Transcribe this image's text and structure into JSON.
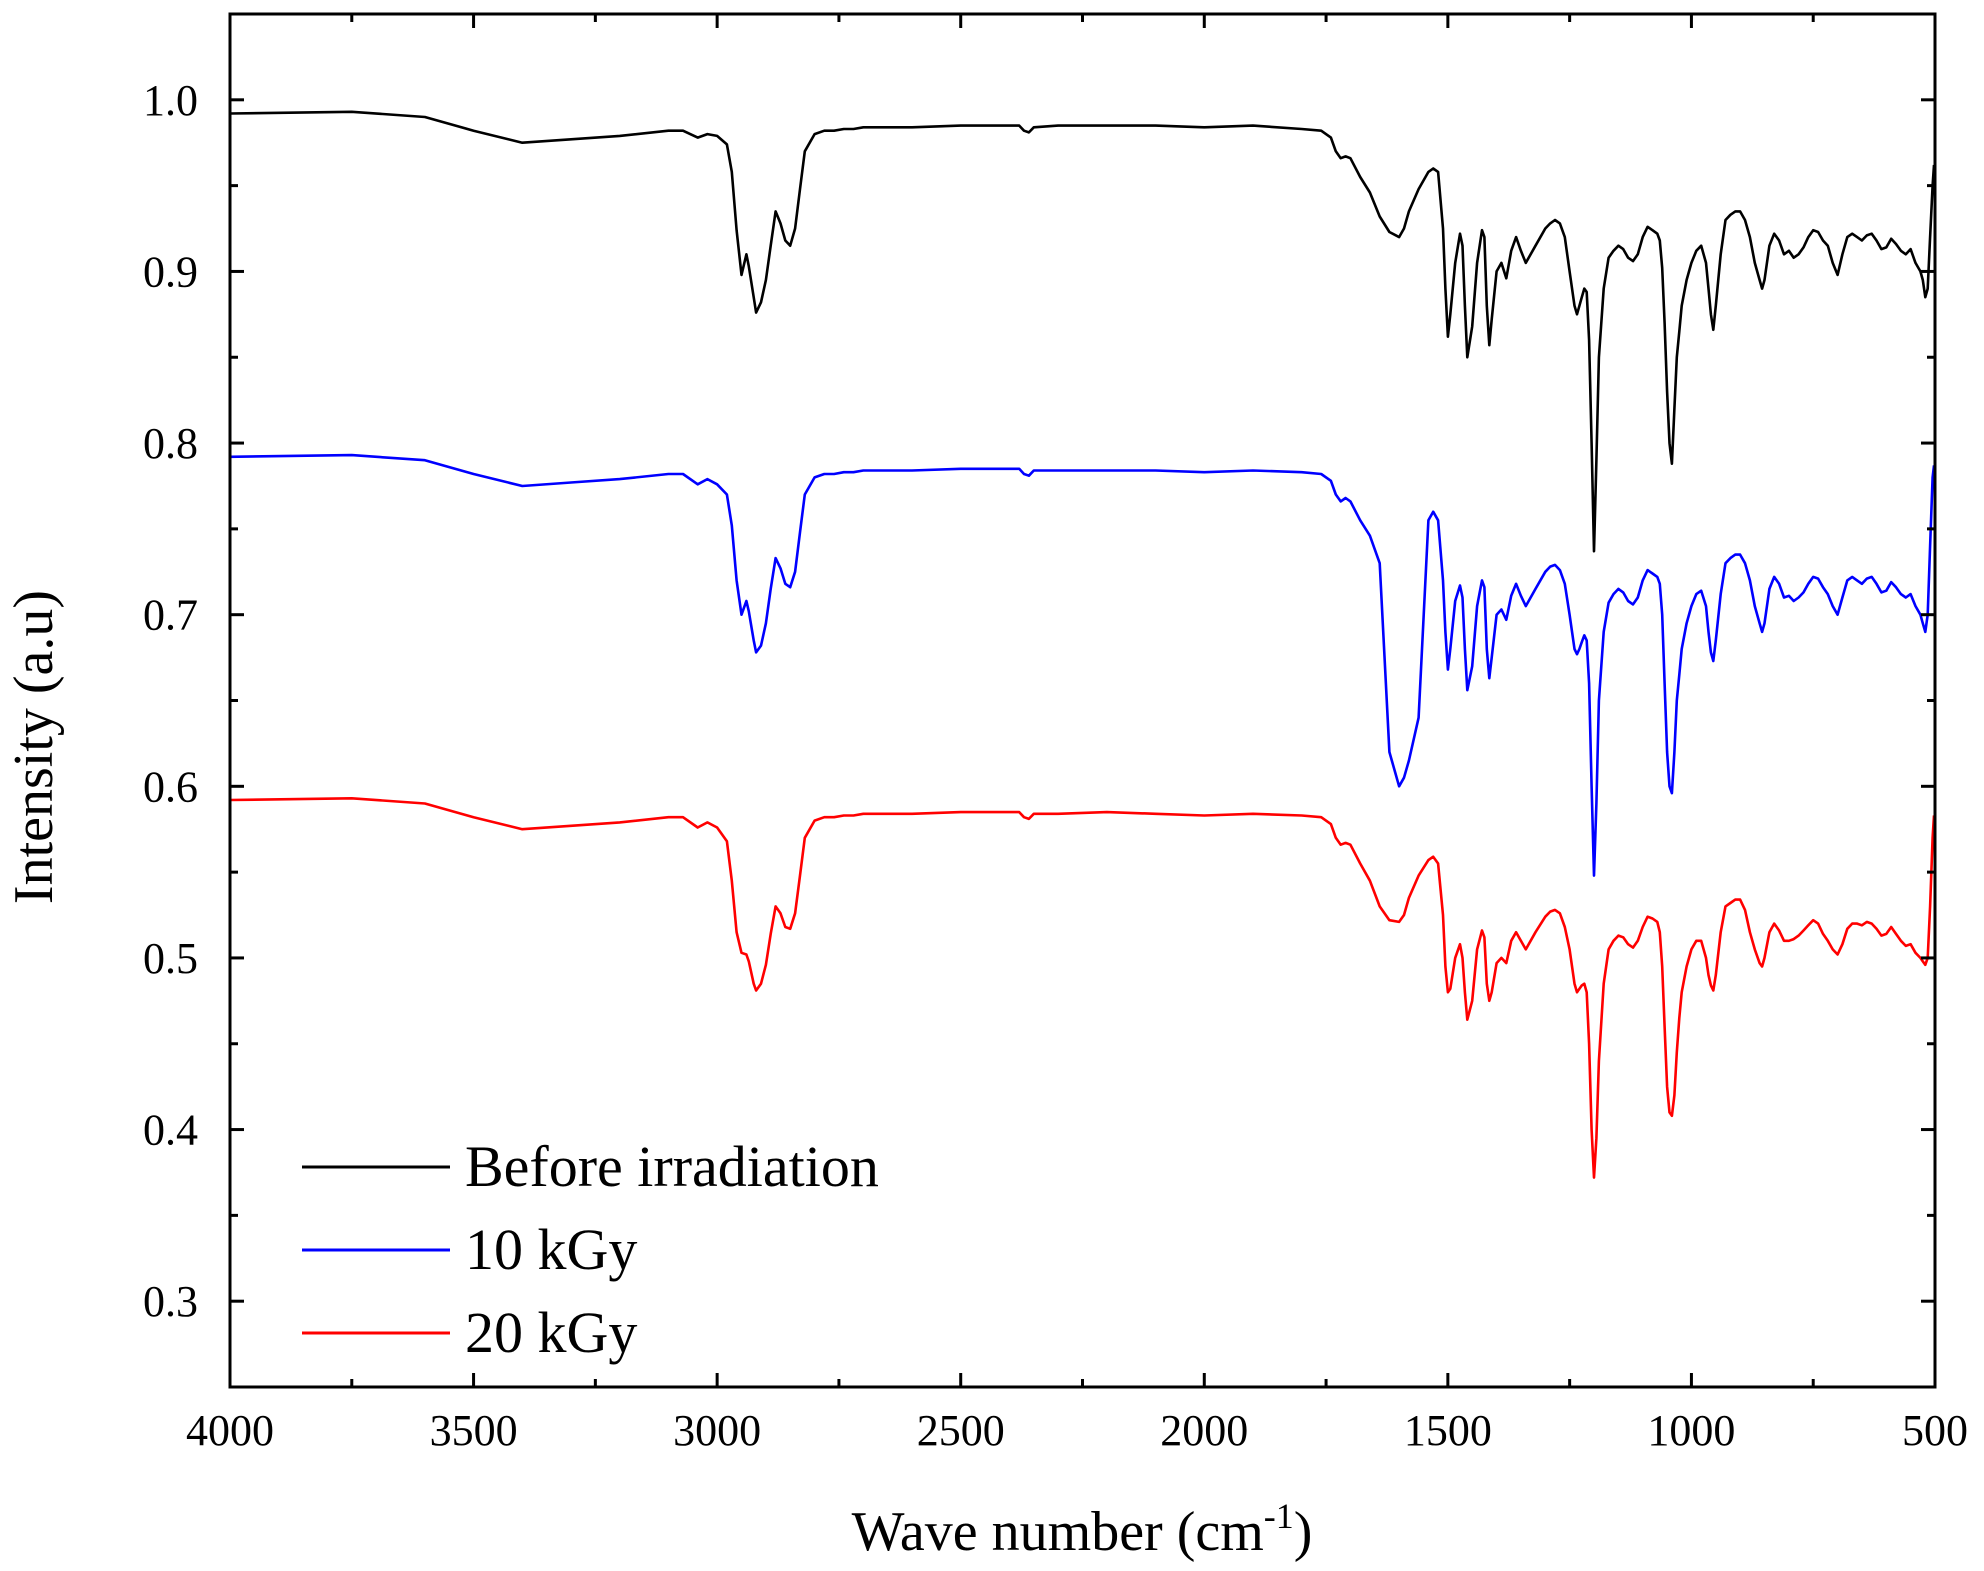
{
  "chart_data": {
    "type": "line",
    "title": "",
    "xlabel": "Wave number (cm",
    "xlabel_sup": "-1",
    "xlabel_close": ")",
    "ylabel": "Intensity (a.u)",
    "xlim": [
      4000,
      500
    ],
    "ylim": [
      0.25,
      1.05
    ],
    "x_ticks": [
      4000,
      3500,
      3000,
      2500,
      2000,
      1500,
      1000,
      500
    ],
    "x_tick_labels": [
      "4000",
      "3500",
      "3000",
      "2500",
      "2000",
      "1500",
      "1000",
      "500"
    ],
    "y_ticks": [
      0.3,
      0.4,
      0.5,
      0.6,
      0.7,
      0.8,
      0.9,
      1.0
    ],
    "y_tick_labels": [
      "0.3",
      "0.4",
      "0.5",
      "0.6",
      "0.7",
      "0.8",
      "0.9",
      "1.0"
    ],
    "grid": false,
    "legend_position": "bottom-left",
    "series": [
      {
        "name": "Before irradiation",
        "color": "#000000",
        "x": [
          4000,
          3750,
          3600,
          3500,
          3400,
          3300,
          3200,
          3100,
          3070,
          3040,
          3020,
          3000,
          2980,
          2970,
          2960,
          2950,
          2940,
          2935,
          2925,
          2920,
          2910,
          2900,
          2890,
          2880,
          2870,
          2860,
          2850,
          2840,
          2830,
          2820,
          2800,
          2780,
          2760,
          2740,
          2720,
          2700,
          2600,
          2500,
          2380,
          2370,
          2360,
          2350,
          2300,
          2200,
          2100,
          2000,
          1900,
          1800,
          1760,
          1740,
          1730,
          1720,
          1710,
          1700,
          1680,
          1660,
          1640,
          1620,
          1600,
          1590,
          1580,
          1560,
          1540,
          1530,
          1520,
          1510,
          1505,
          1500,
          1495,
          1485,
          1475,
          1470,
          1465,
          1460,
          1450,
          1440,
          1430,
          1425,
          1420,
          1415,
          1410,
          1400,
          1390,
          1380,
          1370,
          1360,
          1350,
          1340,
          1320,
          1300,
          1290,
          1280,
          1270,
          1260,
          1250,
          1240,
          1235,
          1230,
          1225,
          1220,
          1215,
          1210,
          1205,
          1200,
          1195,
          1190,
          1180,
          1170,
          1160,
          1150,
          1140,
          1130,
          1120,
          1110,
          1100,
          1090,
          1080,
          1070,
          1065,
          1060,
          1055,
          1050,
          1045,
          1040,
          1035,
          1030,
          1025,
          1020,
          1010,
          1000,
          990,
          980,
          970,
          965,
          960,
          955,
          950,
          940,
          930,
          920,
          910,
          900,
          890,
          880,
          870,
          860,
          855,
          850,
          840,
          830,
          820,
          810,
          800,
          790,
          780,
          770,
          760,
          750,
          740,
          730,
          720,
          710,
          700,
          690,
          680,
          670,
          660,
          650,
          640,
          630,
          620,
          610,
          600,
          590,
          580,
          570,
          560,
          550,
          540,
          530,
          525,
          520,
          515,
          510,
          505,
          502
        ],
        "values": [
          0.992,
          0.993,
          0.99,
          0.982,
          0.975,
          0.977,
          0.979,
          0.982,
          0.982,
          0.978,
          0.98,
          0.979,
          0.974,
          0.958,
          0.924,
          0.898,
          0.91,
          0.903,
          0.885,
          0.876,
          0.882,
          0.895,
          0.915,
          0.935,
          0.928,
          0.918,
          0.915,
          0.925,
          0.948,
          0.97,
          0.98,
          0.982,
          0.982,
          0.983,
          0.983,
          0.984,
          0.984,
          0.985,
          0.985,
          0.982,
          0.981,
          0.984,
          0.985,
          0.985,
          0.985,
          0.984,
          0.985,
          0.983,
          0.982,
          0.978,
          0.97,
          0.966,
          0.967,
          0.966,
          0.955,
          0.946,
          0.932,
          0.923,
          0.92,
          0.925,
          0.935,
          0.948,
          0.958,
          0.96,
          0.958,
          0.925,
          0.89,
          0.862,
          0.875,
          0.905,
          0.922,
          0.915,
          0.88,
          0.85,
          0.868,
          0.905,
          0.924,
          0.92,
          0.88,
          0.857,
          0.872,
          0.9,
          0.905,
          0.896,
          0.912,
          0.92,
          0.912,
          0.905,
          0.915,
          0.925,
          0.928,
          0.93,
          0.928,
          0.92,
          0.9,
          0.88,
          0.875,
          0.88,
          0.885,
          0.89,
          0.888,
          0.86,
          0.8,
          0.737,
          0.79,
          0.85,
          0.89,
          0.908,
          0.912,
          0.915,
          0.913,
          0.908,
          0.906,
          0.91,
          0.92,
          0.926,
          0.924,
          0.922,
          0.918,
          0.902,
          0.87,
          0.83,
          0.8,
          0.788,
          0.82,
          0.85,
          0.865,
          0.88,
          0.895,
          0.905,
          0.912,
          0.915,
          0.905,
          0.89,
          0.875,
          0.866,
          0.88,
          0.91,
          0.93,
          0.933,
          0.935,
          0.935,
          0.93,
          0.92,
          0.905,
          0.895,
          0.89,
          0.895,
          0.915,
          0.922,
          0.918,
          0.91,
          0.912,
          0.908,
          0.91,
          0.914,
          0.92,
          0.924,
          0.923,
          0.918,
          0.915,
          0.905,
          0.898,
          0.91,
          0.92,
          0.922,
          0.92,
          0.918,
          0.921,
          0.922,
          0.918,
          0.913,
          0.914,
          0.919,
          0.916,
          0.912,
          0.91,
          0.913,
          0.905,
          0.9,
          0.895,
          0.885,
          0.89,
          0.92,
          0.95,
          0.962
        ]
      },
      {
        "name": "10 kGy",
        "color": "#0000ff",
        "x": [
          4000,
          3750,
          3600,
          3500,
          3400,
          3300,
          3200,
          3100,
          3070,
          3040,
          3020,
          3000,
          2980,
          2970,
          2960,
          2950,
          2940,
          2935,
          2925,
          2920,
          2910,
          2900,
          2890,
          2880,
          2870,
          2860,
          2850,
          2840,
          2830,
          2820,
          2800,
          2780,
          2760,
          2740,
          2720,
          2700,
          2600,
          2500,
          2380,
          2370,
          2360,
          2350,
          2300,
          2200,
          2100,
          2000,
          1900,
          1800,
          1760,
          1740,
          1730,
          1720,
          1710,
          1700,
          1680,
          1660,
          1640,
          1620,
          1600,
          1590,
          1580,
          1560,
          1540,
          1530,
          1520,
          1510,
          1505,
          1500,
          1495,
          1485,
          1475,
          1470,
          1465,
          1460,
          1450,
          1440,
          1430,
          1425,
          1420,
          1415,
          1410,
          1400,
          1390,
          1380,
          1370,
          1360,
          1350,
          1340,
          1320,
          1300,
          1290,
          1280,
          1270,
          1260,
          1250,
          1240,
          1235,
          1230,
          1225,
          1220,
          1215,
          1210,
          1205,
          1200,
          1195,
          1190,
          1180,
          1170,
          1160,
          1150,
          1140,
          1130,
          1120,
          1110,
          1100,
          1090,
          1080,
          1070,
          1065,
          1060,
          1055,
          1050,
          1045,
          1040,
          1035,
          1030,
          1025,
          1020,
          1010,
          1000,
          990,
          980,
          970,
          965,
          960,
          955,
          950,
          940,
          930,
          920,
          910,
          900,
          890,
          880,
          870,
          860,
          855,
          850,
          840,
          830,
          820,
          810,
          800,
          790,
          780,
          770,
          760,
          750,
          740,
          730,
          720,
          710,
          700,
          690,
          680,
          670,
          660,
          650,
          640,
          630,
          620,
          610,
          600,
          590,
          580,
          570,
          560,
          550,
          540,
          530,
          525,
          520,
          515,
          510,
          505,
          502
        ],
        "values": [
          0.792,
          0.793,
          0.79,
          0.782,
          0.775,
          0.777,
          0.779,
          0.782,
          0.782,
          0.776,
          0.779,
          0.776,
          0.77,
          0.752,
          0.72,
          0.7,
          0.708,
          0.702,
          0.685,
          0.678,
          0.682,
          0.695,
          0.715,
          0.733,
          0.727,
          0.718,
          0.716,
          0.725,
          0.748,
          0.77,
          0.78,
          0.782,
          0.782,
          0.783,
          0.783,
          0.784,
          0.784,
          0.785,
          0.785,
          0.782,
          0.781,
          0.784,
          0.784,
          0.784,
          0.784,
          0.783,
          0.784,
          0.783,
          0.782,
          0.778,
          0.77,
          0.766,
          0.768,
          0.766,
          0.755,
          0.746,
          0.73,
          0.62,
          0.6,
          0.605,
          0.615,
          0.64,
          0.755,
          0.76,
          0.755,
          0.72,
          0.69,
          0.668,
          0.68,
          0.708,
          0.717,
          0.71,
          0.68,
          0.656,
          0.67,
          0.705,
          0.72,
          0.716,
          0.68,
          0.663,
          0.675,
          0.7,
          0.703,
          0.697,
          0.711,
          0.718,
          0.711,
          0.705,
          0.715,
          0.725,
          0.728,
          0.729,
          0.726,
          0.718,
          0.7,
          0.68,
          0.677,
          0.68,
          0.684,
          0.688,
          0.685,
          0.66,
          0.6,
          0.548,
          0.59,
          0.65,
          0.69,
          0.707,
          0.712,
          0.715,
          0.713,
          0.708,
          0.706,
          0.71,
          0.72,
          0.726,
          0.724,
          0.722,
          0.718,
          0.7,
          0.66,
          0.62,
          0.6,
          0.596,
          0.62,
          0.65,
          0.665,
          0.68,
          0.695,
          0.705,
          0.712,
          0.714,
          0.705,
          0.69,
          0.678,
          0.673,
          0.685,
          0.712,
          0.73,
          0.733,
          0.735,
          0.735,
          0.73,
          0.72,
          0.705,
          0.695,
          0.69,
          0.695,
          0.715,
          0.722,
          0.718,
          0.71,
          0.711,
          0.708,
          0.71,
          0.713,
          0.718,
          0.722,
          0.721,
          0.716,
          0.712,
          0.705,
          0.7,
          0.71,
          0.72,
          0.722,
          0.72,
          0.718,
          0.721,
          0.722,
          0.718,
          0.713,
          0.714,
          0.719,
          0.716,
          0.712,
          0.71,
          0.712,
          0.705,
          0.7,
          0.695,
          0.69,
          0.7,
          0.74,
          0.78,
          0.787
        ]
      },
      {
        "name": "20 kGy",
        "color": "#ff0000",
        "x": [
          4000,
          3750,
          3600,
          3500,
          3400,
          3300,
          3200,
          3100,
          3070,
          3040,
          3020,
          3000,
          2980,
          2970,
          2960,
          2950,
          2940,
          2935,
          2925,
          2920,
          2910,
          2900,
          2890,
          2880,
          2870,
          2860,
          2850,
          2840,
          2830,
          2820,
          2800,
          2780,
          2760,
          2740,
          2720,
          2700,
          2600,
          2500,
          2380,
          2370,
          2360,
          2350,
          2300,
          2200,
          2100,
          2000,
          1900,
          1800,
          1760,
          1740,
          1730,
          1720,
          1710,
          1700,
          1680,
          1660,
          1640,
          1620,
          1600,
          1590,
          1580,
          1560,
          1540,
          1530,
          1520,
          1510,
          1505,
          1500,
          1495,
          1485,
          1475,
          1470,
          1465,
          1460,
          1450,
          1440,
          1430,
          1425,
          1420,
          1415,
          1410,
          1400,
          1390,
          1380,
          1370,
          1360,
          1350,
          1340,
          1320,
          1300,
          1290,
          1280,
          1270,
          1260,
          1250,
          1240,
          1235,
          1230,
          1225,
          1220,
          1215,
          1210,
          1205,
          1200,
          1195,
          1190,
          1180,
          1170,
          1160,
          1150,
          1140,
          1130,
          1120,
          1110,
          1100,
          1090,
          1080,
          1070,
          1065,
          1060,
          1055,
          1050,
          1045,
          1040,
          1035,
          1030,
          1025,
          1020,
          1010,
          1000,
          990,
          980,
          970,
          965,
          960,
          955,
          950,
          940,
          930,
          920,
          910,
          900,
          890,
          880,
          870,
          860,
          855,
          850,
          840,
          830,
          820,
          810,
          800,
          790,
          780,
          770,
          760,
          750,
          740,
          730,
          720,
          710,
          700,
          690,
          680,
          670,
          660,
          650,
          640,
          630,
          620,
          610,
          600,
          590,
          580,
          570,
          560,
          550,
          540,
          530,
          525,
          520,
          515,
          510,
          505,
          502
        ],
        "values": [
          0.592,
          0.593,
          0.59,
          0.582,
          0.575,
          0.577,
          0.579,
          0.582,
          0.582,
          0.576,
          0.579,
          0.576,
          0.568,
          0.545,
          0.515,
          0.503,
          0.502,
          0.498,
          0.485,
          0.481,
          0.485,
          0.496,
          0.514,
          0.53,
          0.526,
          0.518,
          0.517,
          0.526,
          0.548,
          0.57,
          0.58,
          0.582,
          0.582,
          0.583,
          0.583,
          0.584,
          0.584,
          0.585,
          0.585,
          0.582,
          0.581,
          0.584,
          0.584,
          0.585,
          0.584,
          0.583,
          0.584,
          0.583,
          0.582,
          0.578,
          0.57,
          0.566,
          0.567,
          0.566,
          0.555,
          0.545,
          0.53,
          0.522,
          0.521,
          0.525,
          0.535,
          0.548,
          0.557,
          0.559,
          0.555,
          0.525,
          0.495,
          0.48,
          0.482,
          0.5,
          0.508,
          0.5,
          0.48,
          0.464,
          0.475,
          0.505,
          0.516,
          0.512,
          0.485,
          0.475,
          0.48,
          0.497,
          0.5,
          0.497,
          0.51,
          0.515,
          0.51,
          0.505,
          0.515,
          0.524,
          0.527,
          0.528,
          0.526,
          0.518,
          0.505,
          0.485,
          0.48,
          0.482,
          0.484,
          0.485,
          0.48,
          0.45,
          0.4,
          0.372,
          0.395,
          0.44,
          0.485,
          0.505,
          0.51,
          0.513,
          0.512,
          0.508,
          0.506,
          0.51,
          0.518,
          0.524,
          0.523,
          0.521,
          0.515,
          0.495,
          0.46,
          0.425,
          0.41,
          0.408,
          0.42,
          0.445,
          0.465,
          0.48,
          0.495,
          0.505,
          0.51,
          0.51,
          0.5,
          0.49,
          0.484,
          0.481,
          0.49,
          0.515,
          0.53,
          0.532,
          0.534,
          0.534,
          0.528,
          0.515,
          0.505,
          0.497,
          0.495,
          0.5,
          0.515,
          0.52,
          0.516,
          0.51,
          0.51,
          0.511,
          0.513,
          0.516,
          0.519,
          0.522,
          0.52,
          0.514,
          0.51,
          0.505,
          0.502,
          0.508,
          0.517,
          0.52,
          0.52,
          0.519,
          0.521,
          0.52,
          0.517,
          0.513,
          0.514,
          0.518,
          0.514,
          0.51,
          0.507,
          0.508,
          0.503,
          0.5,
          0.498,
          0.496,
          0.5,
          0.53,
          0.57,
          0.583
        ]
      }
    ]
  }
}
